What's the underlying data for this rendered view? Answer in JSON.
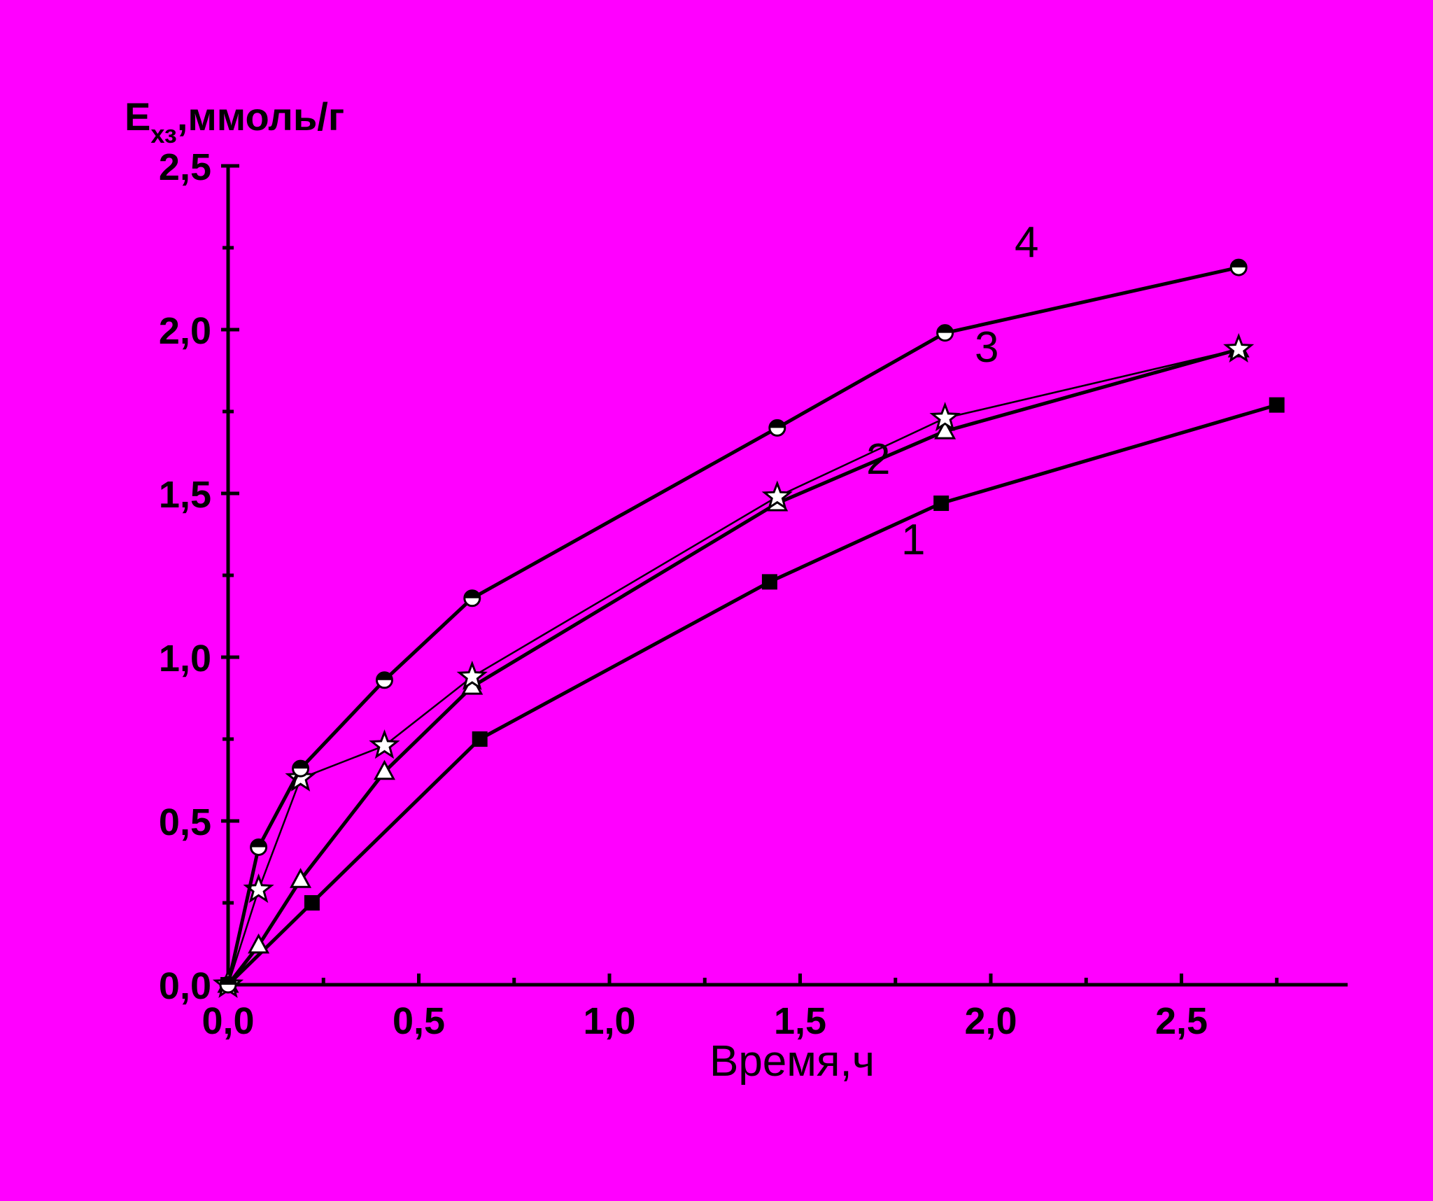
{
  "chart_data": {
    "type": "line",
    "ylabel": {
      "main": "E",
      "subscript": "хз",
      "rest": ",ммоль/г"
    },
    "xlabel": "Время,ч",
    "xlim": [
      0,
      2.9
    ],
    "ylim": [
      0,
      2.5
    ],
    "x_ticks": [
      "0,0",
      "0,5",
      "1,0",
      "1,5",
      "2,0",
      "2,5"
    ],
    "y_ticks": [
      "0,0",
      "0,5",
      "1,0",
      "1,5",
      "2,0",
      "2,5"
    ],
    "background": "#ff00ff",
    "series": [
      {
        "label": "1",
        "marker": "square",
        "x": [
          0,
          0.22,
          0.66,
          1.42,
          1.87,
          2.75
        ],
        "y": [
          0,
          0.25,
          0.75,
          1.23,
          1.47,
          1.77
        ]
      },
      {
        "label": "2",
        "marker": "triangle",
        "x": [
          0,
          0.08,
          0.19,
          0.41,
          0.64,
          1.44,
          1.88,
          2.65
        ],
        "y": [
          0,
          0.12,
          0.32,
          0.65,
          0.91,
          1.47,
          1.69,
          1.94
        ]
      },
      {
        "label": "3",
        "marker": "star",
        "x": [
          0,
          0.08,
          0.19,
          0.41,
          0.64,
          1.44,
          1.88,
          2.65
        ],
        "y": [
          0,
          0.29,
          0.63,
          0.73,
          0.94,
          1.49,
          1.73,
          1.94
        ]
      },
      {
        "label": "4",
        "marker": "half-circle",
        "x": [
          0,
          0.08,
          0.19,
          0.41,
          0.64,
          1.44,
          1.88,
          2.65
        ],
        "y": [
          0,
          0.42,
          0.66,
          0.93,
          1.18,
          1.7,
          1.99,
          2.19
        ]
      }
    ]
  }
}
